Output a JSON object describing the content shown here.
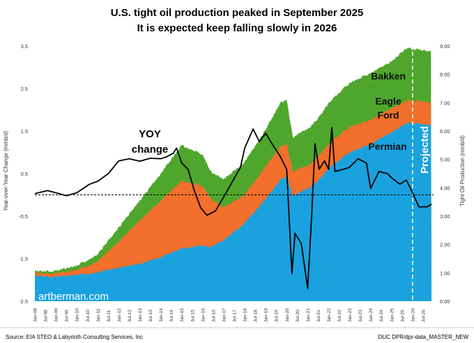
{
  "title_line1": "U.S. tight oil production peaked in September 2025",
  "title_line2": "It is expected keep falling slowly in 2026",
  "footer_left": "Source: EIA STEO & Labyrinth Consulting Services, Inc",
  "footer_right": "DUC DPR/dpr-data_MASTER_NEW",
  "watermark": "artberman.com",
  "projected_label": "Projected",
  "colors": {
    "permian": "#1aa2df",
    "eagle_ford": "#f26f2c",
    "bakken": "#4ea72c",
    "yoy": "#000000"
  },
  "chart_data": {
    "type": "area",
    "x_ticks": [
      "Jan-08",
      "Jul-08",
      "Jan-09",
      "Jul-09",
      "Jan-10",
      "Jul-10",
      "Jan-11",
      "Jul-11",
      "Jan-12",
      "Jul-12",
      "Jan-13",
      "Jul-13",
      "Jan-14",
      "Jul-14",
      "Jan-15",
      "Jul-15",
      "Jan-16",
      "Jul-16",
      "Jan-17",
      "Jul-17",
      "Jan-18",
      "Jul-18",
      "Jan-19",
      "Jul-19",
      "Jan-20",
      "Jul-20",
      "Jan-21",
      "Jul-21",
      "Jan-22",
      "Jul-22",
      "Jan-23",
      "Jul-23",
      "Jan-24",
      "Jul-24",
      "Jan-25",
      "Jul-25",
      "Jan-26",
      "Jul-26"
    ],
    "y_left": {
      "label": "Year-over-Year Change (mmb/d)",
      "ticks": [
        "3.5",
        "2.5",
        "1.5",
        "0.5",
        "-0.5",
        "-1.5",
        "-2.5"
      ],
      "range": [
        -2.5,
        3.5
      ]
    },
    "y_right": {
      "label": "Tight Oil Production (mmb/d)",
      "ticks": [
        "9.00",
        "8.00",
        "7.00",
        "6.00",
        "5.00",
        "4.00",
        "3.00",
        "2.00",
        "1.00",
        "0.00"
      ],
      "range": [
        0,
        9
      ]
    },
    "series_labels": {
      "permian": "Permian",
      "eagle_ford_1": "Eagle",
      "eagle_ford_2": "Ford",
      "bakken": "Bakken",
      "yoy_1": "YOY",
      "yoy_2": "change"
    },
    "projection_start": "Jan-26",
    "zero_line": 0,
    "permian": [
      [
        2008.0,
        0.9
      ],
      [
        2009.0,
        0.86
      ],
      [
        2010.0,
        0.93
      ],
      [
        2011.0,
        1.01
      ],
      [
        2012.0,
        1.18
      ],
      [
        2013.0,
        1.32
      ],
      [
        2014.0,
        1.55
      ],
      [
        2015.0,
        1.86
      ],
      [
        2016.0,
        1.95
      ],
      [
        2016.4,
        1.91
      ],
      [
        2017.0,
        2.15
      ],
      [
        2018.0,
        2.75
      ],
      [
        2019.0,
        3.6
      ],
      [
        2019.7,
        4.28
      ],
      [
        2020.0,
        4.4
      ],
      [
        2020.3,
        3.7
      ],
      [
        2020.6,
        3.85
      ],
      [
        2021.0,
        3.95
      ],
      [
        2021.5,
        4.25
      ],
      [
        2022.0,
        4.7
      ],
      [
        2023.0,
        5.25
      ],
      [
        2024.0,
        5.55
      ],
      [
        2025.0,
        5.95
      ],
      [
        2025.7,
        6.28
      ],
      [
        2026.0,
        6.28
      ],
      [
        2026.9,
        6.22
      ]
    ],
    "eagle_ford": [
      [
        2008.0,
        1.0
      ],
      [
        2009.0,
        0.98
      ],
      [
        2010.0,
        1.1
      ],
      [
        2011.0,
        1.4
      ],
      [
        2012.0,
        2.1
      ],
      [
        2013.0,
        2.85
      ],
      [
        2014.0,
        3.55
      ],
      [
        2015.0,
        4.25
      ],
      [
        2016.0,
        4.05
      ],
      [
        2016.4,
        3.6
      ],
      [
        2017.0,
        3.3
      ],
      [
        2018.0,
        3.75
      ],
      [
        2019.0,
        4.75
      ],
      [
        2019.7,
        5.45
      ],
      [
        2020.0,
        5.55
      ],
      [
        2020.3,
        4.55
      ],
      [
        2020.6,
        4.7
      ],
      [
        2021.0,
        4.75
      ],
      [
        2021.5,
        5.1
      ],
      [
        2022.0,
        5.55
      ],
      [
        2023.0,
        6.15
      ],
      [
        2024.0,
        6.4
      ],
      [
        2025.0,
        6.8
      ],
      [
        2025.7,
        7.08
      ],
      [
        2026.0,
        7.08
      ],
      [
        2026.9,
        7.02
      ]
    ],
    "bakken": [
      [
        2008.0,
        1.06
      ],
      [
        2009.0,
        1.07
      ],
      [
        2010.0,
        1.25
      ],
      [
        2011.0,
        1.65
      ],
      [
        2012.0,
        2.6
      ],
      [
        2013.0,
        3.55
      ],
      [
        2014.0,
        4.5
      ],
      [
        2015.0,
        5.5
      ],
      [
        2016.0,
        5.15
      ],
      [
        2016.4,
        4.55
      ],
      [
        2017.0,
        4.3
      ],
      [
        2018.0,
        4.9
      ],
      [
        2019.0,
        6.05
      ],
      [
        2019.7,
        7.0
      ],
      [
        2020.0,
        7.1
      ],
      [
        2020.3,
        5.75
      ],
      [
        2020.6,
        5.95
      ],
      [
        2021.0,
        6.05
      ],
      [
        2021.5,
        6.45
      ],
      [
        2022.0,
        7.0
      ],
      [
        2023.0,
        7.7
      ],
      [
        2024.0,
        8.05
      ],
      [
        2025.0,
        8.45
      ],
      [
        2025.7,
        8.93
      ],
      [
        2026.0,
        8.9
      ],
      [
        2026.9,
        8.82
      ]
    ],
    "yoy": [
      [
        2008.0,
        0.03
      ],
      [
        2008.6,
        0.1
      ],
      [
        2009.0,
        0.05
      ],
      [
        2009.5,
        -0.02
      ],
      [
        2010.0,
        0.05
      ],
      [
        2010.6,
        0.25
      ],
      [
        2011.0,
        0.32
      ],
      [
        2011.5,
        0.5
      ],
      [
        2012.0,
        0.8
      ],
      [
        2012.5,
        0.85
      ],
      [
        2013.0,
        0.79
      ],
      [
        2013.5,
        0.86
      ],
      [
        2014.0,
        0.85
      ],
      [
        2014.3,
        0.9
      ],
      [
        2014.6,
        0.98
      ],
      [
        2014.75,
        1.1
      ],
      [
        2015.0,
        0.75
      ],
      [
        2015.3,
        0.6
      ],
      [
        2015.6,
        0.1
      ],
      [
        2015.9,
        -0.3
      ],
      [
        2016.2,
        -0.48
      ],
      [
        2016.6,
        -0.38
      ],
      [
        2017.0,
        -0.05
      ],
      [
        2017.4,
        0.3
      ],
      [
        2017.8,
        0.65
      ],
      [
        2018.0,
        1.1
      ],
      [
        2018.4,
        1.55
      ],
      [
        2018.7,
        1.25
      ],
      [
        2019.0,
        1.45
      ],
      [
        2019.3,
        1.2
      ],
      [
        2019.7,
        0.9
      ],
      [
        2020.0,
        0.6
      ],
      [
        2020.25,
        -1.85
      ],
      [
        2020.4,
        -0.9
      ],
      [
        2020.7,
        -1.15
      ],
      [
        2021.0,
        -2.2
      ],
      [
        2021.2,
        -0.4
      ],
      [
        2021.35,
        1.2
      ],
      [
        2021.55,
        0.6
      ],
      [
        2021.8,
        0.8
      ],
      [
        2022.0,
        0.6
      ],
      [
        2022.15,
        1.58
      ],
      [
        2022.3,
        0.55
      ],
      [
        2022.7,
        0.6
      ],
      [
        2023.0,
        0.65
      ],
      [
        2023.4,
        0.85
      ],
      [
        2023.8,
        0.75
      ],
      [
        2024.0,
        0.15
      ],
      [
        2024.4,
        0.55
      ],
      [
        2024.8,
        0.5
      ],
      [
        2025.0,
        0.4
      ],
      [
        2025.4,
        0.25
      ],
      [
        2025.7,
        0.35
      ],
      [
        2026.0,
        0.05
      ],
      [
        2026.3,
        -0.28
      ],
      [
        2026.7,
        -0.28
      ],
      [
        2026.9,
        -0.22
      ]
    ]
  }
}
